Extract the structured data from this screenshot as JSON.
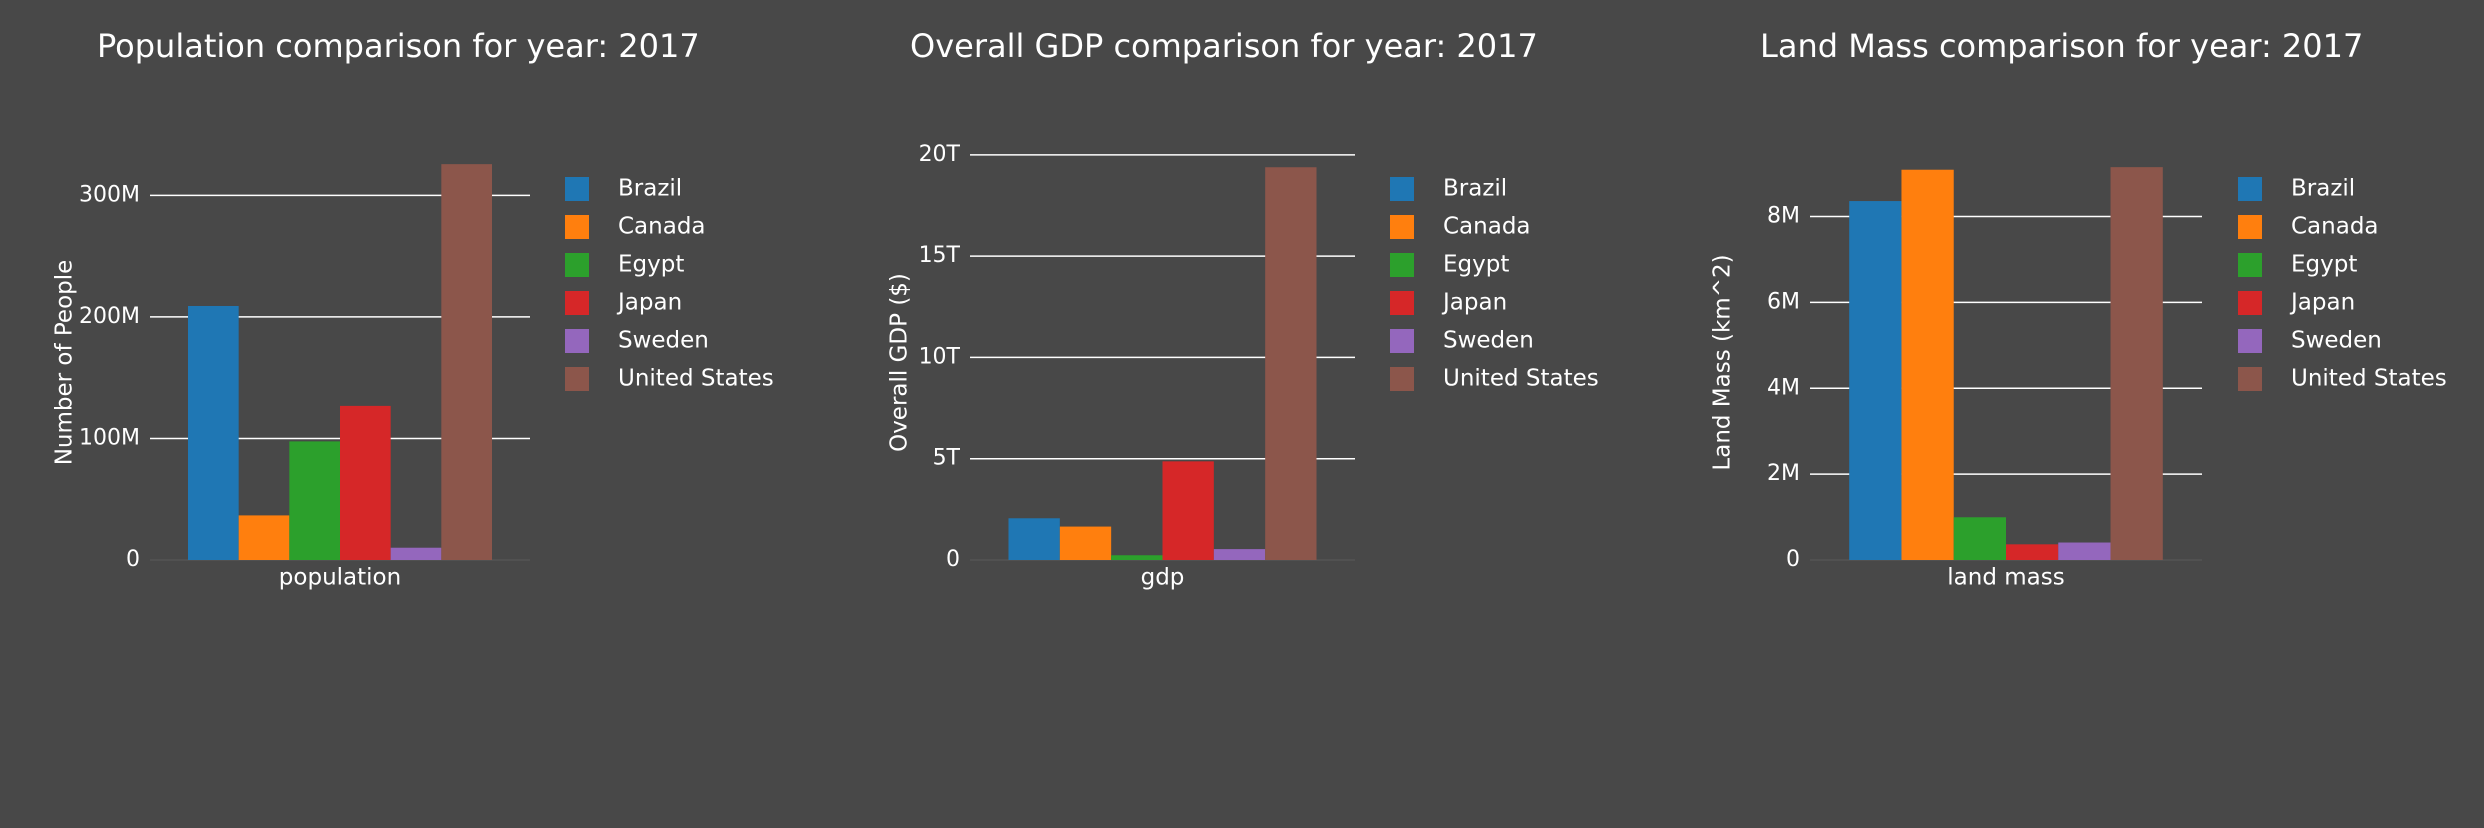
{
  "chart_data": [
    {
      "type": "bar",
      "title": "Population comparison for year: 2017",
      "ylabel": "Number of People",
      "categories": [
        "population"
      ],
      "ylim": [
        0,
        325000000
      ],
      "yticks": [
        0,
        100000000,
        200000000,
        300000000
      ],
      "ytick_labels": [
        "0",
        "100M",
        "200M",
        "300M"
      ],
      "grid": true,
      "legend_position": "right",
      "series": [
        {
          "name": "Brazil",
          "values": [
            209000000
          ]
        },
        {
          "name": "Canada",
          "values": [
            36700000
          ]
        },
        {
          "name": "Egypt",
          "values": [
            97600000
          ]
        },
        {
          "name": "Japan",
          "values": [
            126800000
          ]
        },
        {
          "name": "Sweden",
          "values": [
            10100000
          ]
        },
        {
          "name": "United States",
          "values": [
            325700000
          ]
        }
      ]
    },
    {
      "type": "bar",
      "title": "Overall GDP comparison for year: 2017",
      "ylabel": "Overall GDP ($)",
      "categories": [
        "gdp"
      ],
      "ylim": [
        0,
        19500000000000
      ],
      "yticks": [
        0,
        5000000000000,
        10000000000000,
        15000000000000,
        20000000000000
      ],
      "ytick_labels": [
        "0",
        "5T",
        "10T",
        "15T",
        "20T"
      ],
      "grid": true,
      "legend_position": "right",
      "series": [
        {
          "name": "Brazil",
          "values": [
            2060000000000
          ]
        },
        {
          "name": "Canada",
          "values": [
            1650000000000
          ]
        },
        {
          "name": "Egypt",
          "values": [
            235000000000
          ]
        },
        {
          "name": "Japan",
          "values": [
            4870000000000
          ]
        },
        {
          "name": "Sweden",
          "values": [
            538000000000
          ]
        },
        {
          "name": "United States",
          "values": [
            19390000000000
          ]
        }
      ]
    },
    {
      "type": "bar",
      "title": "Land Mass comparison for year: 2017",
      "ylabel": "Land Mass (km^2)",
      "categories": [
        "land mass"
      ],
      "ylim": [
        0,
        9200000
      ],
      "yticks": [
        0,
        2000000,
        4000000,
        6000000,
        8000000
      ],
      "ytick_labels": [
        "0",
        "2M",
        "4M",
        "6M",
        "8M"
      ],
      "grid": true,
      "legend_position": "right",
      "series": [
        {
          "name": "Brazil",
          "values": [
            8360000
          ]
        },
        {
          "name": "Canada",
          "values": [
            9090000
          ]
        },
        {
          "name": "Egypt",
          "values": [
            995000
          ]
        },
        {
          "name": "Japan",
          "values": [
            365000
          ]
        },
        {
          "name": "Sweden",
          "values": [
            407000
          ]
        },
        {
          "name": "United States",
          "values": [
            9150000
          ]
        }
      ]
    }
  ],
  "colors": [
    "#1f77b4",
    "#ff7f0e",
    "#2ca02c",
    "#d62728",
    "#9467bd",
    "#8c564b"
  ],
  "theme": {
    "background": "#484848",
    "grid": "#ffffff",
    "text": "#ffffff"
  }
}
